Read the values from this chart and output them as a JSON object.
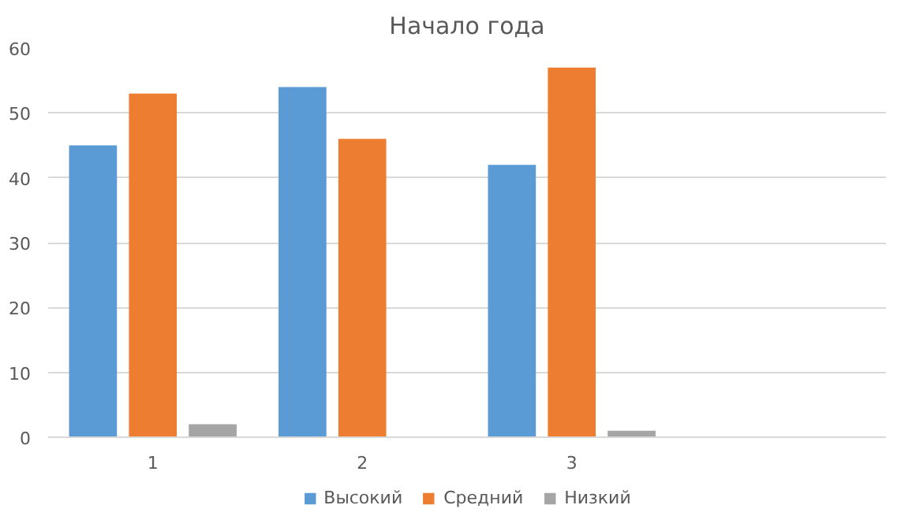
{
  "chart_data": {
    "type": "bar",
    "title": "Начало года",
    "categories": [
      "1",
      "2",
      "3",
      null
    ],
    "series": [
      {
        "name": "Высокий",
        "color": "#5b9bd5",
        "values": [
          45,
          54,
          42,
          null
        ]
      },
      {
        "name": "Средний",
        "color": "#ed7d31",
        "values": [
          53,
          46,
          57,
          null
        ]
      },
      {
        "name": "Низкий",
        "color": "#a5a5a5",
        "values": [
          2,
          0,
          1,
          null
        ]
      }
    ],
    "ylim": [
      0,
      60
    ],
    "yticks": [
      0,
      10,
      20,
      30,
      40,
      50,
      60
    ],
    "grid": "y",
    "legend": "bottom"
  }
}
